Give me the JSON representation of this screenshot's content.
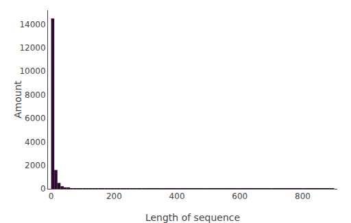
{
  "chart_data": {
    "type": "histogram",
    "xlabel": "Length of sequence",
    "ylabel": "Amount",
    "bins": [
      0,
      10,
      20,
      30,
      40,
      50,
      60,
      70,
      80,
      90,
      100,
      110,
      120,
      130,
      140,
      150,
      160,
      170,
      180,
      190,
      200,
      210,
      220,
      230,
      240,
      250,
      260,
      270,
      280,
      290,
      300,
      350,
      400,
      500,
      600,
      700,
      800,
      900
    ],
    "values": [
      14500,
      1600,
      500,
      220,
      120,
      80,
      50,
      35,
      25,
      20,
      15,
      12,
      10,
      8,
      7,
      6,
      5,
      4,
      4,
      3,
      3,
      3,
      2,
      2,
      2,
      2,
      2,
      2,
      2,
      2,
      30,
      5,
      3,
      2,
      1,
      1,
      1
    ],
    "color": "#2d0a2e",
    "xlim": [
      -10,
      910
    ],
    "xticks": [
      0,
      200,
      400,
      600,
      800
    ],
    "ylim": [
      0,
      15200
    ],
    "yticks": [
      0,
      2000,
      4000,
      6000,
      8000,
      10000,
      12000,
      14000
    ],
    "grid": false
  }
}
